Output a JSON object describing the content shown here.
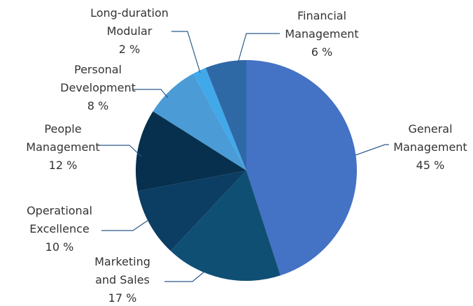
{
  "chart_data": {
    "type": "pie",
    "categories": [
      "General\nManagement",
      "Marketing\nand Sales",
      "Operational\nExcellence",
      "People\nManagement",
      "Personal\nDevelopment",
      "Long-duration\nModular",
      "Financial\nManagement"
    ],
    "values": [
      45,
      17,
      10,
      12,
      8,
      2,
      6
    ],
    "value_labels": [
      "45 %",
      "17 %",
      "10 %",
      "12 %",
      "8 %",
      "2 %",
      "6 %"
    ],
    "colors": [
      "#4472c4",
      "#0f4f74",
      "#0c3d63",
      "#06304d",
      "#4a9bd6",
      "#41a9ea",
      "#2f69a5"
    ]
  }
}
